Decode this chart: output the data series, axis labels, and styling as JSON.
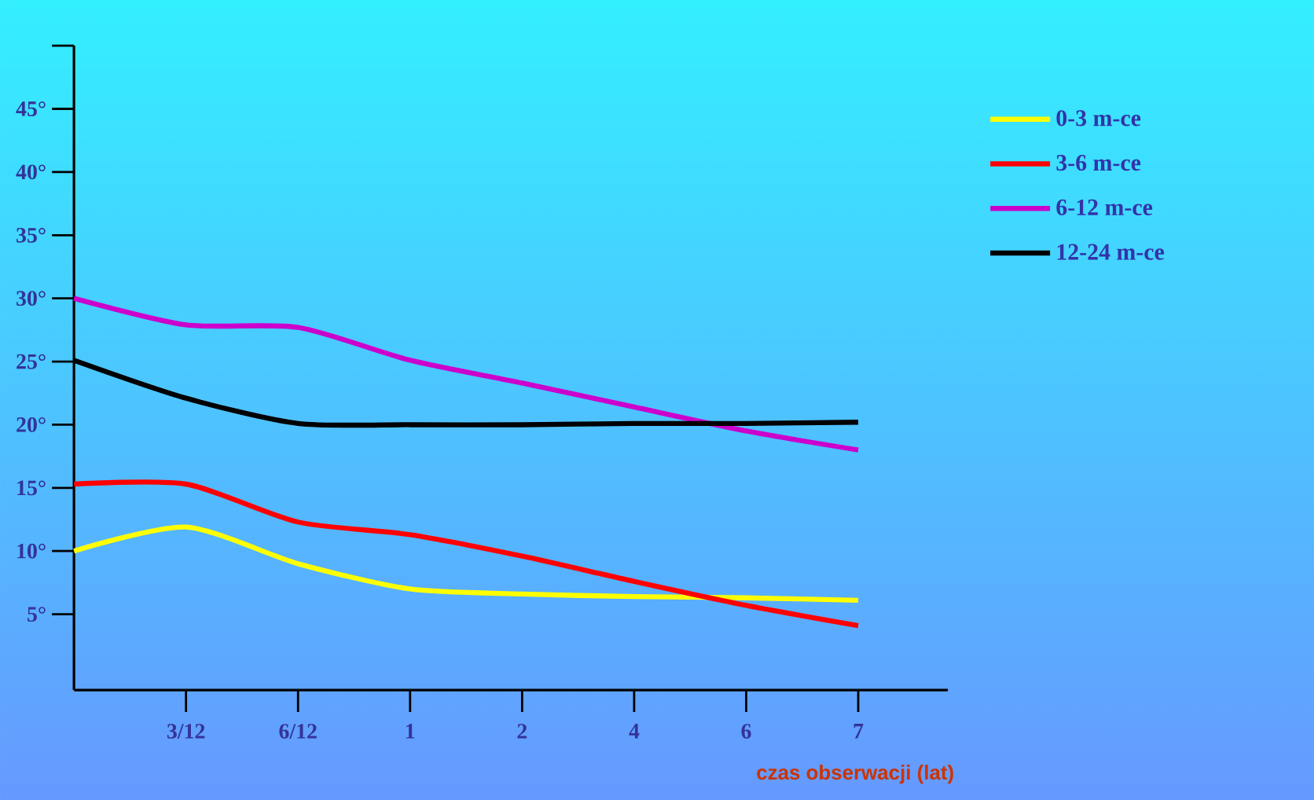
{
  "chart_data": {
    "type": "line",
    "xlabel": "czas  obserwacji  (lat)",
    "ylim": [
      -1,
      50
    ],
    "categories": [
      null,
      "3/12",
      "6/12",
      "1",
      "2",
      "4",
      "6",
      "7"
    ],
    "yticks": [
      {
        "value": 5,
        "label": "5°"
      },
      {
        "value": 10,
        "label": "10°"
      },
      {
        "value": 15,
        "label": "15°"
      },
      {
        "value": 20,
        "label": "20°"
      },
      {
        "value": 25,
        "label": "25°"
      },
      {
        "value": 30,
        "label": "30°"
      },
      {
        "value": 35,
        "label": "35°"
      },
      {
        "value": 40,
        "label": "40°"
      },
      {
        "value": 45,
        "label": "45°"
      },
      {
        "value": 50,
        "label": null
      }
    ],
    "legend": "top right",
    "series": [
      {
        "name": "0-3 m-ce",
        "color": "#ffff00",
        "values": [
          10,
          11.9,
          9,
          7,
          6.6,
          6.4,
          6.3,
          6.1
        ]
      },
      {
        "name": "3-6 m-ce",
        "color": "#ff0000",
        "values": [
          15.3,
          15.3,
          12.3,
          11.3,
          9.6,
          7.6,
          5.7,
          4.1
        ]
      },
      {
        "name": "6-12 m-ce",
        "color": "#cc00cc",
        "values": [
          30,
          27.9,
          27.7,
          25.1,
          23.3,
          21.4,
          19.5,
          18
        ]
      },
      {
        "name": "12-24 m-ce",
        "color": "#000000",
        "values": [
          25.1,
          22.1,
          20.1,
          20,
          20,
          20.1,
          20.1,
          20.2
        ]
      }
    ]
  }
}
